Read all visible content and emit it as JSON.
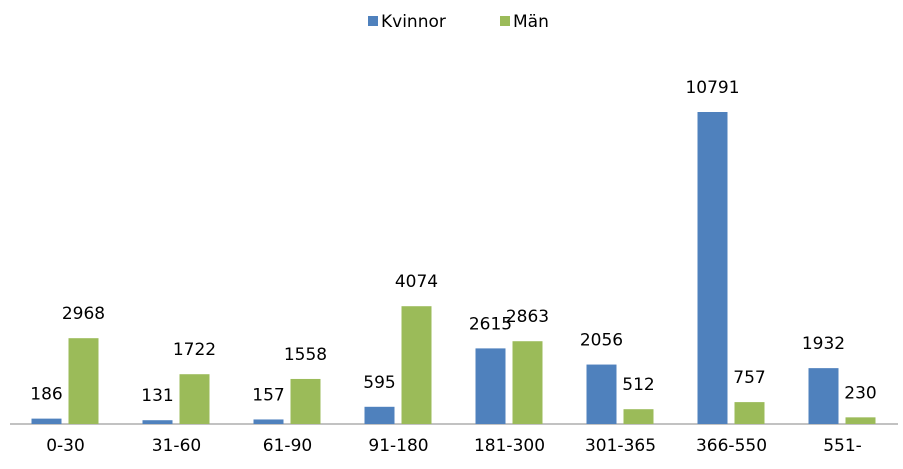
{
  "chart_data": {
    "type": "bar",
    "categories": [
      "0-30",
      "31-60",
      "61-90",
      "91-180",
      "181-300",
      "301-365",
      "366-550",
      "551-"
    ],
    "series": [
      {
        "name": "Kvinnor",
        "color": "#4f81bd",
        "values": [
          186,
          131,
          157,
          595,
          2615,
          2056,
          10791,
          1932
        ]
      },
      {
        "name": "Män",
        "color": "#9bbb59",
        "values": [
          2968,
          1722,
          1558,
          4074,
          2863,
          512,
          757,
          230
        ]
      }
    ],
    "legend": "top"
  }
}
